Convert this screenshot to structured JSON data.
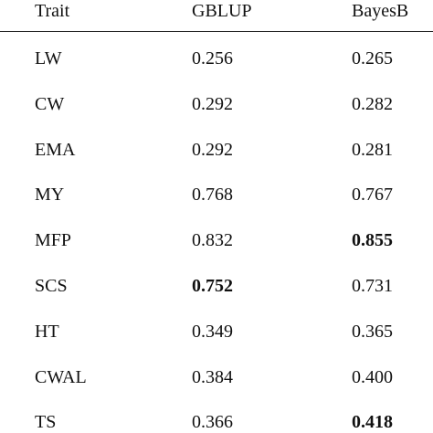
{
  "table": {
    "header": [
      "Trait",
      "GBLUP",
      "BayesB"
    ],
    "rows": [
      [
        "LW",
        "0.256",
        "0.265"
      ],
      [
        "CW",
        "0.292",
        "0.282"
      ],
      [
        "EMA",
        "0.292",
        "0.281"
      ],
      [
        "MY",
        "0.768",
        "0.767"
      ],
      [
        "MFP",
        "0.832",
        "0.855"
      ],
      [
        "SCS",
        "0.752",
        "0.731"
      ],
      [
        "HT",
        "0.349",
        "0.365"
      ],
      [
        "CWAL",
        "0.384",
        "0.400"
      ],
      [
        "TS",
        "0.366",
        "0.418"
      ]
    ],
    "bold": [
      [
        4,
        2
      ],
      [
        5,
        1
      ],
      [
        8,
        2
      ]
    ]
  }
}
